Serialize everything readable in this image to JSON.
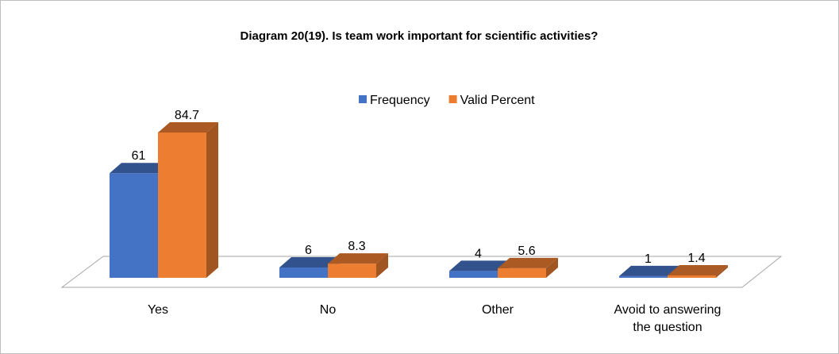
{
  "chart_data": {
    "type": "bar3d",
    "title": "Diagram 20(19).   Is team work important for scientific activities?",
    "categories": [
      "Yes",
      "No",
      "Other",
      "Avoid to answering the question"
    ],
    "series": [
      {
        "name": "Frequency",
        "color": "#4472c4",
        "values": [
          61,
          6,
          4,
          1
        ]
      },
      {
        "name": "Valid Percent",
        "color": "#ed7d31",
        "values": [
          84.7,
          8.3,
          5.6,
          1.4
        ]
      }
    ],
    "legend": "top"
  }
}
